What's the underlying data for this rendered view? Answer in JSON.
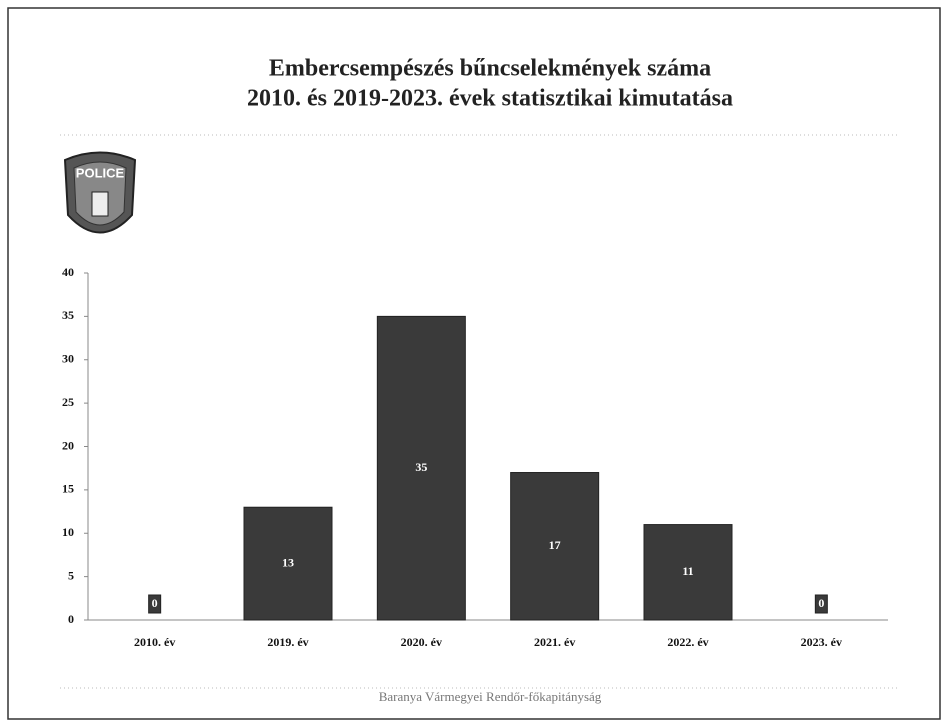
{
  "chart_data": {
    "type": "bar",
    "title": "Embercsempészés bűncselekmények száma",
    "subtitle": "2010. és 2019-2023. évek statisztikai kimutatása",
    "categories": [
      "2010. év",
      "2019. év",
      "2020. év",
      "2021. év",
      "2022. év",
      "2023. év"
    ],
    "values": [
      0,
      13,
      35,
      17,
      11,
      0
    ],
    "color": "#3a3a3a",
    "ylim": [
      0,
      40
    ],
    "yticks": [
      0,
      5,
      10,
      15,
      20,
      25,
      30,
      35,
      40
    ],
    "grid": false,
    "badge": "POLICE",
    "footer": "Baranya Vármegyei Rendőr-főkapitányság"
  }
}
